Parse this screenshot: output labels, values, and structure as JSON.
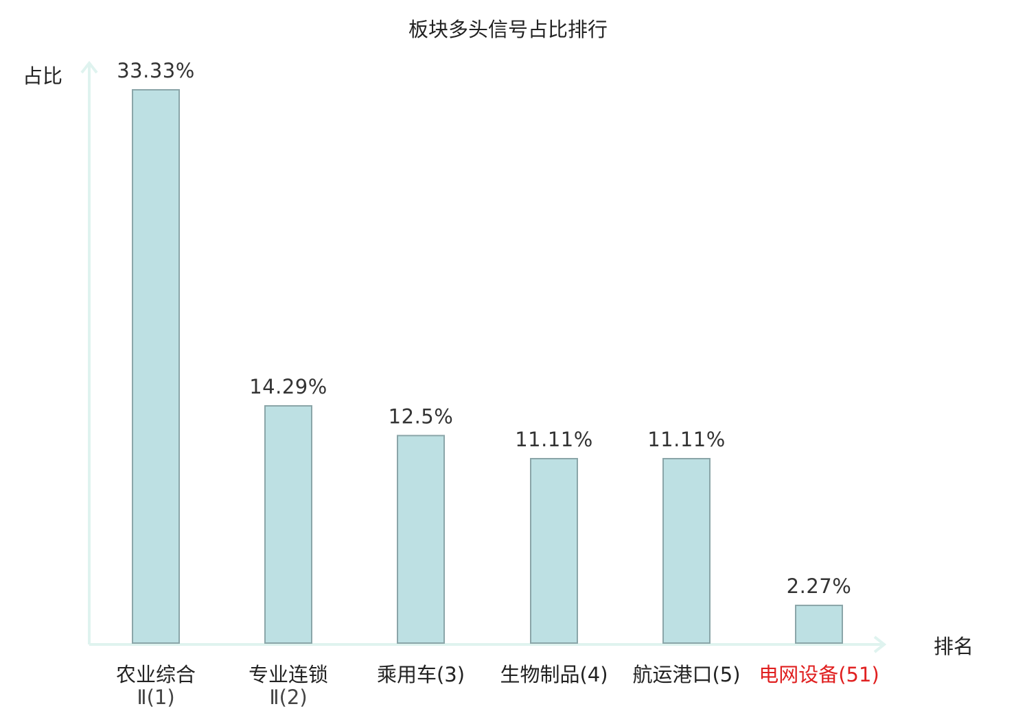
{
  "chart_data": {
    "type": "bar",
    "title": "板块多头信号占比排行",
    "ylabel": "占比",
    "xlabel": "排名",
    "ylim": [
      0,
      35
    ],
    "grid": false,
    "categories": [
      {
        "lines": [
          "农业综合",
          "Ⅱ(1)"
        ],
        "highlight": false
      },
      {
        "lines": [
          "专业连锁",
          "Ⅱ(2)"
        ],
        "highlight": false
      },
      {
        "lines": [
          "乘用车(3)"
        ],
        "highlight": false
      },
      {
        "lines": [
          "生物制品(4)"
        ],
        "highlight": false
      },
      {
        "lines": [
          "航运港口(5)"
        ],
        "highlight": false
      },
      {
        "lines": [
          "电网设备(51)"
        ],
        "highlight": true
      }
    ],
    "values": [
      33.33,
      14.29,
      12.5,
      11.11,
      11.11,
      2.27
    ],
    "value_labels": [
      "33.33%",
      "14.29%",
      "12.5%",
      "11.11%",
      "11.11%",
      "2.27%"
    ],
    "colors": {
      "bar_fill": "#bde0e3",
      "bar_stroke": "#8aa5a8",
      "axis": "#dff3ef",
      "highlight_text": "#e02020",
      "text": "#222222"
    }
  }
}
